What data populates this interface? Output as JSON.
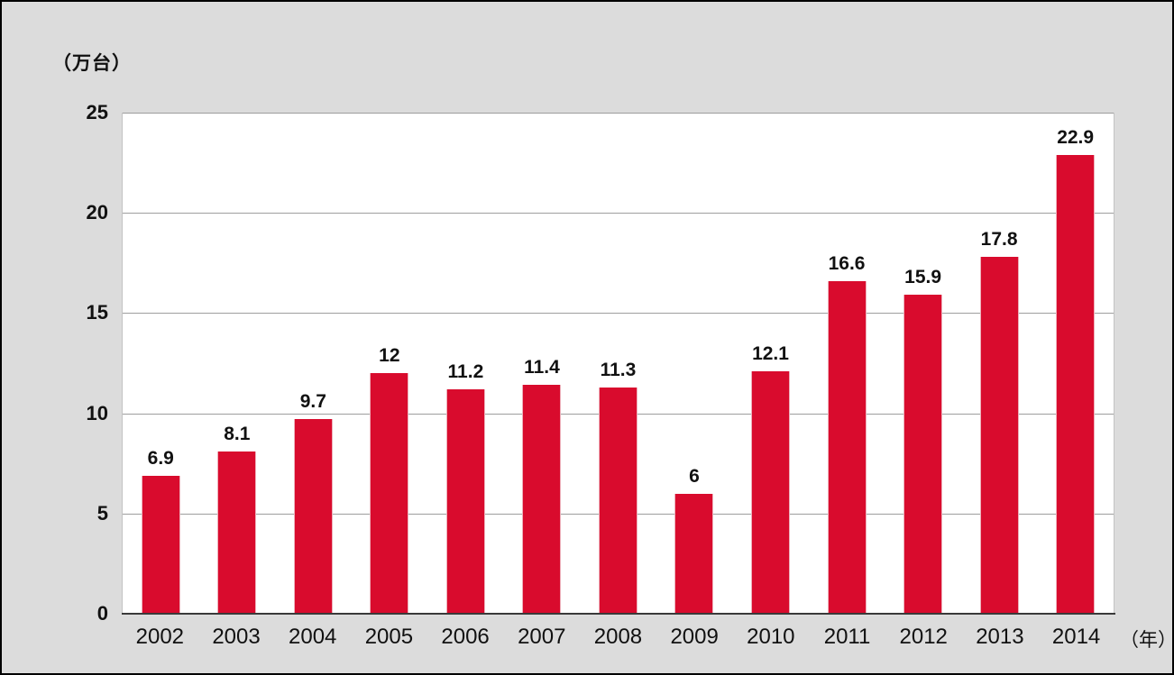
{
  "chart": {
    "unit_label": "（万台）",
    "year_suffix_label": "（年）"
  },
  "chart_data": {
    "type": "bar",
    "title": "",
    "xlabel": "（年）",
    "ylabel": "（万台）",
    "categories": [
      "2002",
      "2003",
      "2004",
      "2005",
      "2006",
      "2007",
      "2008",
      "2009",
      "2010",
      "2011",
      "2012",
      "2013",
      "2014"
    ],
    "values": [
      6.9,
      8.1,
      9.7,
      12,
      11.2,
      11.4,
      11.3,
      6,
      12.1,
      16.6,
      15.9,
      17.8,
      22.9
    ],
    "value_labels": [
      "6.9",
      "8.1",
      "9.7",
      "12",
      "11.2",
      "11.4",
      "11.3",
      "6",
      "12.1",
      "16.6",
      "15.9",
      "17.8",
      "22.9"
    ],
    "ylim": [
      0,
      25
    ],
    "yticks": [
      0,
      5,
      10,
      15,
      20,
      25
    ],
    "grid": true,
    "legend": false,
    "colors": {
      "bar": "#d90b2d",
      "background": "#dcdcdc",
      "plot_background": "#ffffff",
      "gridline": "#9e9e9e",
      "axis": "#3a3a3a",
      "text": "#111111"
    }
  }
}
